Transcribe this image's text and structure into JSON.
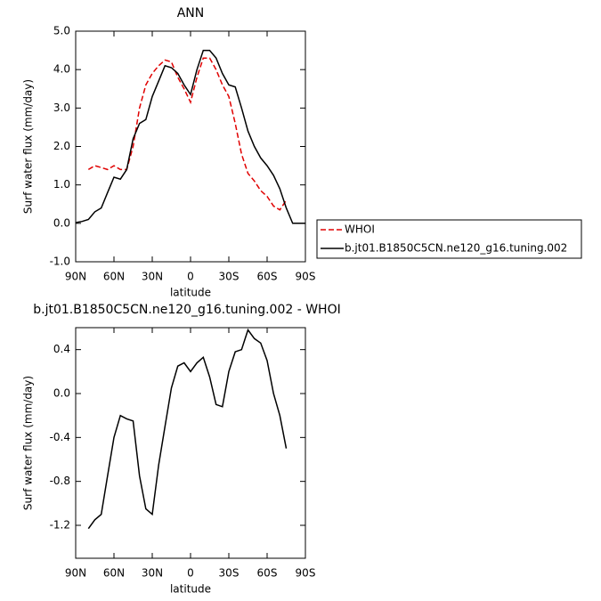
{
  "chart_data": [
    {
      "type": "line",
      "title": "ANN",
      "xlabel": "latitude",
      "ylabel": "Surf water flux (mm/day)",
      "x": [
        90,
        85,
        80,
        75,
        70,
        65,
        60,
        55,
        50,
        45,
        40,
        35,
        30,
        25,
        20,
        15,
        10,
        5,
        0,
        -5,
        -10,
        -15,
        -20,
        -25,
        -30,
        -35,
        -40,
        -45,
        -50,
        -55,
        -60,
        -65,
        -70,
        -75,
        -80,
        -85,
        -90
      ],
      "series": [
        {
          "name": "WHOI",
          "color": "#e00000",
          "dash": true,
          "values": [
            null,
            null,
            1.4,
            1.5,
            1.45,
            1.4,
            1.5,
            1.4,
            1.4,
            2.0,
            3.0,
            3.6,
            3.9,
            4.1,
            4.25,
            4.2,
            3.8,
            3.5,
            3.15,
            3.8,
            4.3,
            4.3,
            4.0,
            3.6,
            3.3,
            2.6,
            1.8,
            1.3,
            1.1,
            0.85,
            0.7,
            0.45,
            0.35,
            0.6,
            null,
            null,
            null
          ]
        },
        {
          "name": "b.jt01.B1850C5CN.ne120_g16.tuning.002",
          "color": "#000000",
          "dash": false,
          "values": [
            0.02,
            0.05,
            0.1,
            0.3,
            0.4,
            0.8,
            1.2,
            1.15,
            1.4,
            2.2,
            2.6,
            2.7,
            3.3,
            3.7,
            4.1,
            4.05,
            3.9,
            3.6,
            3.35,
            4.0,
            4.5,
            4.5,
            4.3,
            3.9,
            3.6,
            3.55,
            3.0,
            2.4,
            2.0,
            1.7,
            1.5,
            1.25,
            0.9,
            0.4,
            0.0,
            0.0,
            0.0
          ]
        }
      ],
      "xlim": [
        90,
        -90
      ],
      "xticks": [
        {
          "value": 90,
          "label": "90N"
        },
        {
          "value": 60,
          "label": "60N"
        },
        {
          "value": 30,
          "label": "30N"
        },
        0,
        {
          "value": -30,
          "label": "30S"
        },
        {
          "value": -60,
          "label": "60S"
        },
        {
          "value": -90,
          "label": "90S"
        }
      ],
      "ylim": [
        -1,
        5
      ],
      "yticks": [
        {
          "value": -1,
          "label": "-1.0"
        },
        {
          "value": 0,
          "label": "0.0"
        },
        {
          "value": 1,
          "label": "1.0"
        },
        {
          "value": 2,
          "label": "2.0"
        },
        {
          "value": 3,
          "label": "3.0"
        },
        {
          "value": 4,
          "label": "4.0"
        },
        {
          "value": 5,
          "label": "5.0"
        }
      ],
      "legend": "right"
    },
    {
      "type": "line",
      "title": "b.jt01.B1850C5CN.ne120_g16.tuning.002 - WHOI",
      "xlabel": "latitude",
      "ylabel": "Surf water flux (mm/day)",
      "x": [
        80,
        75,
        70,
        65,
        60,
        55,
        50,
        45,
        40,
        35,
        30,
        25,
        20,
        15,
        10,
        5,
        0,
        -5,
        -10,
        -15,
        -20,
        -25,
        -30,
        -35,
        -40,
        -45,
        -50,
        -55,
        -60,
        -65,
        -70,
        -75
      ],
      "values": [
        -1.23,
        -1.15,
        -1.1,
        -0.75,
        -0.4,
        -0.2,
        -0.23,
        -0.25,
        -0.75,
        -1.05,
        -1.1,
        -0.65,
        -0.3,
        0.05,
        0.25,
        0.28,
        0.2,
        0.28,
        0.33,
        0.15,
        -0.1,
        -0.12,
        0.2,
        0.38,
        0.4,
        0.58,
        0.5,
        0.46,
        0.3,
        0.0,
        -0.2,
        -0.5
      ],
      "color": "#000000",
      "xlim": [
        90,
        -90
      ],
      "xticks": [
        {
          "value": 90,
          "label": "90N"
        },
        {
          "value": 60,
          "label": "60N"
        },
        {
          "value": 30,
          "label": "30N"
        },
        0,
        {
          "value": -30,
          "label": "30S"
        },
        {
          "value": -60,
          "label": "60S"
        },
        {
          "value": -90,
          "label": "90S"
        }
      ],
      "ylim": [
        -1.5,
        0.6
      ],
      "yticks": [
        -1.2,
        -0.8,
        -0.4,
        {
          "value": 0,
          "label": "0.0"
        },
        0.4
      ]
    }
  ]
}
